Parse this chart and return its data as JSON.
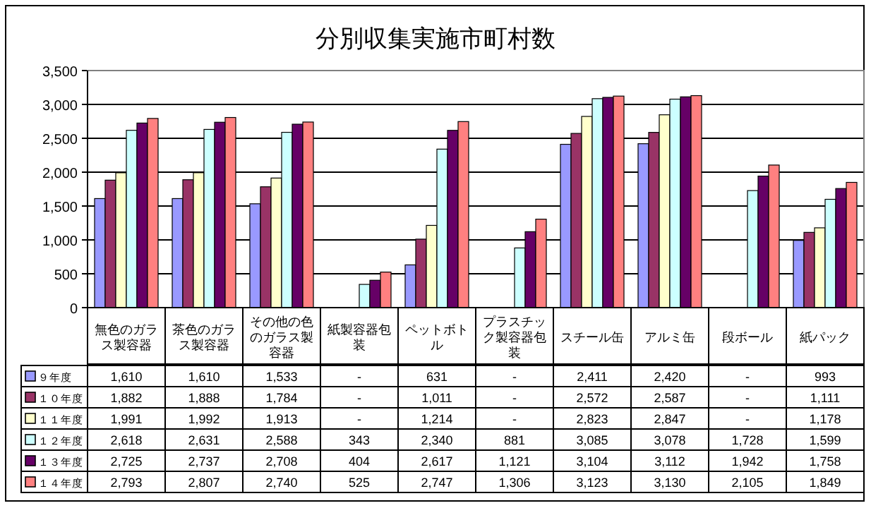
{
  "chart_data": {
    "type": "bar",
    "title": "分別収集実施市町村数",
    "categories": [
      "無色のガラス製容器",
      "茶色のガラス製容器",
      "その他の色のガラス製容器",
      "紙製容器包装",
      "ペットボトル",
      "プラスチック製容器包装",
      "スチール缶",
      "アルミ缶",
      "段ボール",
      "紙パック"
    ],
    "series": [
      {
        "name": "９年度",
        "color": "#9999ff",
        "values": [
          1610,
          1610,
          1533,
          null,
          631,
          null,
          2411,
          2420,
          null,
          993
        ],
        "value_labels": [
          "1,610",
          "1,610",
          "1,533",
          "-",
          "631",
          "-",
          "2,411",
          "2,420",
          "-",
          "993"
        ]
      },
      {
        "name": "１０年度",
        "color": "#993366",
        "values": [
          1882,
          1888,
          1784,
          null,
          1011,
          null,
          2572,
          2587,
          null,
          1111
        ],
        "value_labels": [
          "1,882",
          "1,888",
          "1,784",
          "-",
          "1,011",
          "-",
          "2,572",
          "2,587",
          "-",
          "1,111"
        ]
      },
      {
        "name": "１１年度",
        "color": "#ffffcc",
        "values": [
          1991,
          1992,
          1913,
          null,
          1214,
          null,
          2823,
          2847,
          null,
          1178
        ],
        "value_labels": [
          "1,991",
          "1,992",
          "1,913",
          "-",
          "1,214",
          "-",
          "2,823",
          "2,847",
          "-",
          "1,178"
        ]
      },
      {
        "name": "１２年度",
        "color": "#ccffff",
        "values": [
          2618,
          2631,
          2588,
          343,
          2340,
          881,
          3085,
          3078,
          1728,
          1599
        ],
        "value_labels": [
          "2,618",
          "2,631",
          "2,588",
          "343",
          "2,340",
          "881",
          "3,085",
          "3,078",
          "1,728",
          "1,599"
        ]
      },
      {
        "name": "１３年度",
        "color": "#660066",
        "values": [
          2725,
          2737,
          2708,
          404,
          2617,
          1121,
          3104,
          3112,
          1942,
          1758
        ],
        "value_labels": [
          "2,725",
          "2,737",
          "2,708",
          "404",
          "2,617",
          "1,121",
          "3,104",
          "3,112",
          "1,942",
          "1,758"
        ]
      },
      {
        "name": "１４年度",
        "color": "#ff8080",
        "values": [
          2793,
          2807,
          2740,
          525,
          2747,
          1306,
          3123,
          3130,
          2105,
          1849
        ],
        "value_labels": [
          "2,793",
          "2,807",
          "2,740",
          "525",
          "2,747",
          "1,306",
          "3,123",
          "3,130",
          "2,105",
          "1,849"
        ]
      }
    ],
    "ylim": [
      0,
      3500
    ],
    "yticks": [
      0,
      500,
      {
        "value": 1000,
        "label": "1,000"
      },
      {
        "value": 1500,
        "label": "1,500"
      },
      {
        "value": 2000,
        "label": "2,000"
      },
      {
        "value": 2500,
        "label": "2,500"
      },
      {
        "value": 3000,
        "label": "3,000"
      },
      {
        "value": 3500,
        "label": "3,500"
      }
    ],
    "grid": "y",
    "legend": "bottom"
  }
}
